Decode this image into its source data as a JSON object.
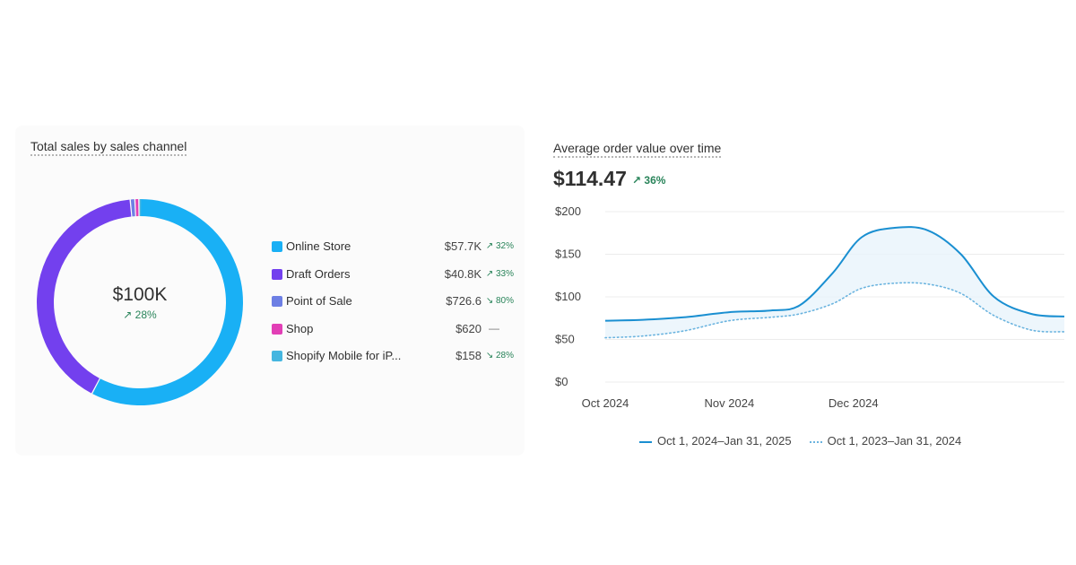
{
  "sales_card": {
    "title": "Total sales by sales channel",
    "total": "$100K",
    "change": "28%"
  },
  "aov_card": {
    "title": "Average order value over time",
    "value": "$114.47",
    "change": "36%"
  },
  "chart_data": [
    {
      "type": "pie",
      "title": "Total sales by sales channel",
      "legend_position": "right",
      "series": [
        {
          "name": "Online Store",
          "value": 57700,
          "label": "$57.7K",
          "change": "32%",
          "direction": "up",
          "color": "#19b0f5"
        },
        {
          "name": "Draft Orders",
          "value": 40800,
          "label": "$40.8K",
          "change": "33%",
          "direction": "up",
          "color": "#7340ee"
        },
        {
          "name": "Point of Sale",
          "value": 726.6,
          "label": "$726.6",
          "change": "80%",
          "direction": "down",
          "color": "#6d7fe4"
        },
        {
          "name": "Shop",
          "value": 620,
          "label": "$620",
          "change": "—",
          "direction": "none",
          "color": "#e23fb6"
        },
        {
          "name": "Shopify Mobile for iP...",
          "value": 158,
          "label": "$158",
          "change": "28%",
          "direction": "down",
          "color": "#45b6e0"
        }
      ]
    },
    {
      "type": "line",
      "title": "Average order value over time",
      "x_ticks": [
        "Oct 2024",
        "Nov 2024",
        "Dec 2024"
      ],
      "y_ticks": [
        "$0",
        "$50",
        "$100",
        "$150",
        "$200"
      ],
      "ylim": [
        0,
        200
      ],
      "legend_position": "bottom",
      "series": [
        {
          "name": "Oct 1, 2024–Jan 31, 2025",
          "style": "solid",
          "color": "#1a8fd1",
          "points": [
            [
              "2024-10-01",
              72
            ],
            [
              "2024-10-10",
              73
            ],
            [
              "2024-10-20",
              76
            ],
            [
              "2024-10-31",
              82
            ],
            [
              "2024-11-10",
              84
            ],
            [
              "2024-11-17",
              90
            ],
            [
              "2024-11-25",
              128
            ],
            [
              "2024-12-02",
              170
            ],
            [
              "2024-12-10",
              181
            ],
            [
              "2024-12-18",
              178
            ],
            [
              "2024-12-26",
              150
            ],
            [
              "2025-01-03",
              100
            ],
            [
              "2025-01-12",
              80
            ],
            [
              "2025-01-20",
              77
            ]
          ]
        },
        {
          "name": "Oct 1, 2023–Jan 31, 2024",
          "style": "dotted",
          "color": "#6bb4df",
          "points": [
            [
              "2024-10-01",
              52
            ],
            [
              "2024-10-10",
              54
            ],
            [
              "2024-10-20",
              60
            ],
            [
              "2024-10-31",
              72
            ],
            [
              "2024-11-10",
              76
            ],
            [
              "2024-11-17",
              80
            ],
            [
              "2024-11-25",
              92
            ],
            [
              "2024-12-02",
              110
            ],
            [
              "2024-12-10",
              116
            ],
            [
              "2024-12-18",
              115
            ],
            [
              "2024-12-26",
              104
            ],
            [
              "2025-01-03",
              78
            ],
            [
              "2025-01-12",
              61
            ],
            [
              "2025-01-20",
              59
            ]
          ]
        }
      ]
    }
  ]
}
